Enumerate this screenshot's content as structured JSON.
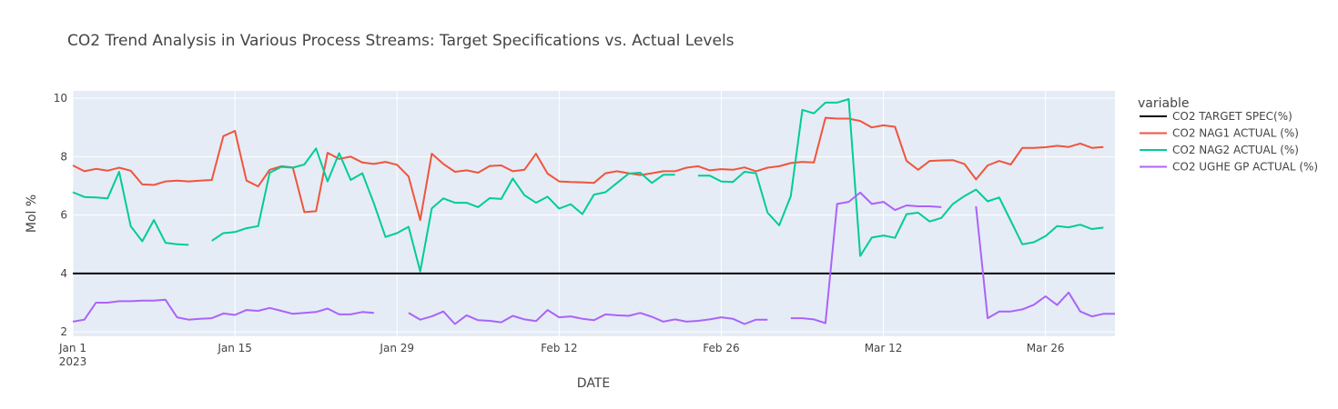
{
  "chart_data": {
    "type": "line",
    "title": "CO2 Trend Analysis in Various Process Streams: Target Specifications vs. Actual Levels",
    "xlabel": "DATE",
    "ylabel": "Mol %",
    "x_start": "2023-01-01",
    "x_ticks": [
      {
        "date": "2023-01-01",
        "label": "Jan 1",
        "sublabel": "2023"
      },
      {
        "date": "2023-01-15",
        "label": "Jan 15"
      },
      {
        "date": "2023-01-29",
        "label": "Jan 29"
      },
      {
        "date": "2023-02-12",
        "label": "Feb 12"
      },
      {
        "date": "2023-02-26",
        "label": "Feb 26"
      },
      {
        "date": "2023-03-12",
        "label": "Mar 12"
      },
      {
        "date": "2023-03-26",
        "label": "Mar 26"
      }
    ],
    "xlim": [
      "2023-01-01",
      "2023-04-01"
    ],
    "ylim": [
      1.85,
      10.25
    ],
    "y_ticks": [
      2,
      4,
      6,
      8,
      10
    ],
    "grid": true,
    "legend_title": "variable",
    "legend_position": "right",
    "series": [
      {
        "name": "CO2 TARGET SPEC(%)",
        "color": "#000000",
        "start": "2023-01-01",
        "values": [
          4,
          4,
          4,
          4,
          4,
          4,
          4,
          4,
          4,
          4,
          4,
          4,
          4,
          4,
          4,
          4,
          4,
          4,
          4,
          4,
          4,
          4,
          4,
          4,
          4,
          4,
          4,
          4,
          4,
          4,
          4,
          4,
          4,
          4,
          4,
          4,
          4,
          4,
          4,
          4,
          4,
          4,
          4,
          4,
          4,
          4,
          4,
          4,
          4,
          4,
          4,
          4,
          4,
          4,
          4,
          4,
          4,
          4,
          4,
          4,
          4,
          4,
          4,
          4,
          4,
          4,
          4,
          4,
          4,
          4,
          4,
          4,
          4,
          4,
          4,
          4,
          4,
          4,
          4,
          4,
          4,
          4,
          4,
          4,
          4,
          4,
          4,
          4,
          4,
          4,
          4
        ]
      },
      {
        "name": "CO2 NAG1 ACTUAL (%)",
        "color": "#EF553B",
        "start": "2023-01-01",
        "values": [
          7.7,
          7.5,
          7.58,
          7.52,
          7.62,
          7.52,
          7.05,
          7.03,
          7.15,
          7.18,
          7.15,
          7.18,
          7.2,
          8.7,
          8.88,
          7.18,
          6.98,
          7.55,
          7.67,
          7.63,
          6.1,
          6.13,
          8.13,
          7.92,
          8.0,
          7.8,
          7.75,
          7.82,
          7.72,
          7.32,
          5.83,
          8.1,
          7.75,
          7.48,
          7.53,
          7.45,
          7.68,
          7.7,
          7.5,
          7.55,
          8.1,
          7.42,
          7.15,
          7.13,
          7.12,
          7.1,
          7.43,
          7.5,
          7.43,
          7.37,
          7.43,
          7.5,
          7.5,
          7.62,
          7.67,
          7.53,
          7.57,
          7.55,
          7.63,
          7.5,
          7.62,
          7.67,
          7.78,
          7.82,
          7.8,
          9.33,
          9.3,
          9.3,
          9.22,
          9.0,
          9.07,
          9.02,
          7.85,
          7.55,
          7.85,
          7.87,
          7.88,
          7.75,
          7.22,
          7.7,
          7.85,
          7.73,
          8.3,
          8.3,
          8.32,
          8.37,
          8.33,
          8.45,
          8.3,
          8.33
        ]
      },
      {
        "name": "CO2 NAG2 ACTUAL (%)",
        "color": "#00CC96",
        "start": "2023-01-01",
        "values": [
          6.78,
          6.62,
          6.6,
          6.57,
          7.48,
          5.62,
          5.1,
          5.83,
          5.05,
          5.0,
          4.98,
          null,
          5.12,
          5.38,
          5.42,
          5.55,
          5.62,
          7.45,
          7.65,
          7.62,
          7.73,
          8.28,
          7.15,
          8.12,
          7.2,
          7.43,
          6.4,
          5.25,
          5.38,
          5.6,
          4.07,
          6.23,
          6.57,
          6.42,
          6.42,
          6.27,
          6.58,
          6.55,
          7.25,
          6.68,
          6.42,
          6.63,
          6.22,
          6.37,
          6.03,
          6.7,
          6.78,
          7.1,
          7.42,
          7.45,
          7.1,
          7.38,
          7.38,
          null,
          7.35,
          7.35,
          7.15,
          7.13,
          7.48,
          7.43,
          6.08,
          5.65,
          6.65,
          9.6,
          9.48,
          9.85,
          9.85,
          9.97,
          4.6,
          5.23,
          5.3,
          5.22,
          6.03,
          6.08,
          5.78,
          5.9,
          6.38,
          6.65,
          6.87,
          6.47,
          6.6,
          5.8,
          5.0,
          5.07,
          5.28,
          5.62,
          5.58,
          5.67,
          5.52,
          5.57
        ]
      },
      {
        "name": "CO2 UGHE GP ACTUAL (%)",
        "color": "#AB63FA",
        "start": "2023-01-01",
        "values": [
          2.35,
          2.42,
          3.0,
          3.0,
          3.05,
          3.05,
          3.07,
          3.07,
          3.1,
          2.5,
          2.42,
          2.45,
          2.47,
          2.63,
          2.58,
          2.75,
          2.72,
          2.82,
          2.72,
          2.62,
          2.65,
          2.68,
          2.8,
          2.6,
          2.6,
          2.68,
          2.65,
          null,
          null,
          2.65,
          2.42,
          2.53,
          2.7,
          2.27,
          2.57,
          2.4,
          2.38,
          2.33,
          2.55,
          2.43,
          2.37,
          2.75,
          2.5,
          2.53,
          2.45,
          2.4,
          2.6,
          2.57,
          2.55,
          2.65,
          2.52,
          2.35,
          2.43,
          2.35,
          2.38,
          2.43,
          2.5,
          2.45,
          2.27,
          2.42,
          2.42,
          null,
          2.47,
          2.47,
          2.43,
          2.3,
          6.38,
          6.45,
          6.77,
          6.38,
          6.45,
          6.17,
          6.33,
          6.3,
          6.3,
          6.27,
          null,
          null,
          6.3,
          2.47,
          2.7,
          2.7,
          2.77,
          2.93,
          3.22,
          2.92,
          3.35,
          2.7,
          2.53,
          2.62,
          2.62
        ]
      }
    ]
  }
}
